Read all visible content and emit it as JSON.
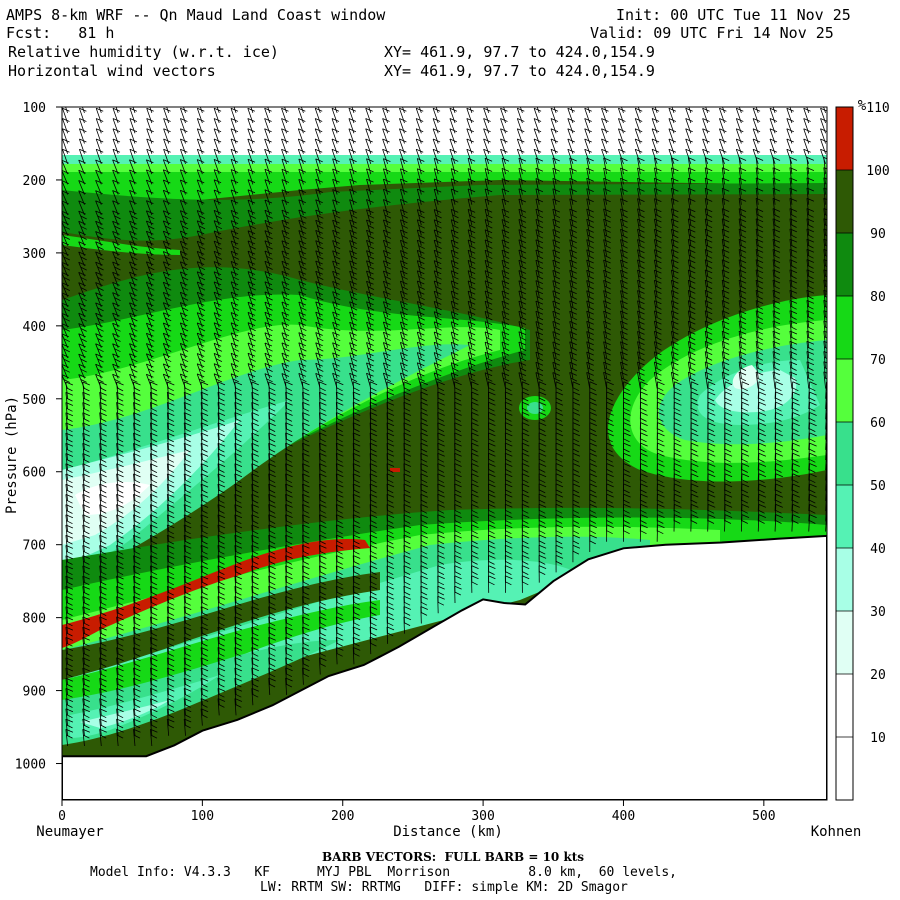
{
  "header": {
    "line1_left": "AMPS 8-km WRF -- Qn Maud Land Coast window",
    "line2_left": "Fcst:   81 h",
    "line3_left": "Relative humidity (w.r.t. ice)",
    "line4_left": "Horizontal wind vectors",
    "line1_right": "Init: 00 UTC Tue 11 Nov 25",
    "line2_right": "Valid: 09 UTC Fri 14 Nov 25",
    "xy1": "XY= 461.9, 97.7 to 424.0,154.9",
    "xy2": "XY= 461.9, 97.7 to 424.0,154.9"
  },
  "footer": {
    "barb_note": "BARB VECTORS:  FULL BARB = 10 kts",
    "model_info": "Model Info: V4.3.3   KF      MYJ PBL  Morrison          8.0 km,  60 levels,",
    "physics": "LW: RRTM SW: RRTMG   DIFF: simple KM: 2D Smagor"
  },
  "chart_data": {
    "type": "heatmap",
    "title": "Relative humidity (w.r.t. ice)",
    "xlabel": "Distance (km)",
    "ylabel": "Pressure (hPa)",
    "x_ticks": [
      0,
      100,
      200,
      300,
      400,
      500
    ],
    "y_ticks": [
      100,
      200,
      300,
      400,
      500,
      600,
      700,
      800,
      900,
      1000
    ],
    "xlim": [
      0,
      545
    ],
    "ylim": [
      100,
      1050
    ],
    "x_end_left": "Neumayer",
    "x_end_right": "Kohnen",
    "colorbar_unit": "%",
    "colorbar_levels": [
      10,
      20,
      30,
      40,
      50,
      60,
      70,
      80,
      90,
      100,
      110
    ],
    "colorbar_colors": [
      "#ffffff",
      "#ffffff",
      "#e0fff4",
      "#a8ffe6",
      "#55f2b4",
      "#38e08c",
      "#55ff3c",
      "#16d916",
      "#0f8a0f",
      "#2e5905",
      "#c81c00"
    ],
    "terrain_pressure": [
      {
        "x": 0,
        "p": 990
      },
      {
        "x": 60,
        "p": 990
      },
      {
        "x": 80,
        "p": 975
      },
      {
        "x": 100,
        "p": 955
      },
      {
        "x": 125,
        "p": 940
      },
      {
        "x": 150,
        "p": 920
      },
      {
        "x": 170,
        "p": 900
      },
      {
        "x": 190,
        "p": 880
      },
      {
        "x": 215,
        "p": 865
      },
      {
        "x": 240,
        "p": 840
      },
      {
        "x": 265,
        "p": 812
      },
      {
        "x": 285,
        "p": 790
      },
      {
        "x": 300,
        "p": 775
      },
      {
        "x": 315,
        "p": 780
      },
      {
        "x": 330,
        "p": 782
      },
      {
        "x": 350,
        "p": 750
      },
      {
        "x": 375,
        "p": 720
      },
      {
        "x": 400,
        "p": 705
      },
      {
        "x": 430,
        "p": 700
      },
      {
        "x": 470,
        "p": 697
      },
      {
        "x": 510,
        "p": 692
      },
      {
        "x": 545,
        "p": 688
      }
    ],
    "wind_barbs": "10 kt full barb, plotted on regular distance-pressure grid"
  }
}
